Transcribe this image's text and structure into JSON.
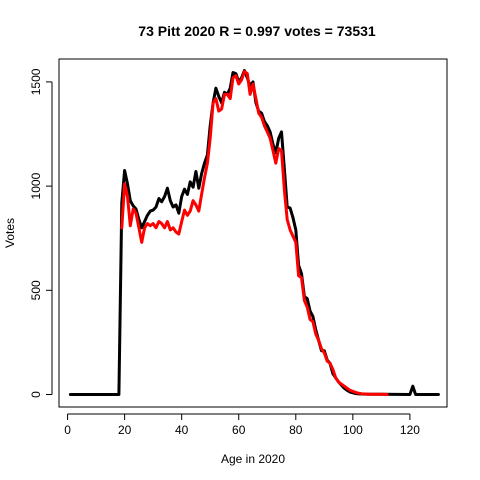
{
  "chart_data": {
    "type": "line",
    "title": "73 Pitt 2020 R = 0.997 votes = 73531",
    "xlabel": "Age in 2020",
    "ylabel": "Votes",
    "xlim": [
      -3,
      133
    ],
    "ylim": [
      -60,
      1610
    ],
    "x_ticks": [
      0,
      20,
      40,
      60,
      80,
      100,
      120
    ],
    "y_ticks": [
      0,
      500,
      1000,
      1500
    ],
    "grid": false,
    "legend": "none",
    "series": [
      {
        "color": "#000000",
        "points": [
          [
            1,
            0
          ],
          [
            18,
            0
          ],
          [
            19,
            920
          ],
          [
            20,
            1075
          ],
          [
            21,
            1010
          ],
          [
            22,
            930
          ],
          [
            23,
            905
          ],
          [
            24,
            890
          ],
          [
            25,
            840
          ],
          [
            26,
            800
          ],
          [
            27,
            830
          ],
          [
            28,
            860
          ],
          [
            29,
            880
          ],
          [
            30,
            885
          ],
          [
            31,
            900
          ],
          [
            32,
            940
          ],
          [
            33,
            925
          ],
          [
            34,
            950
          ],
          [
            35,
            990
          ],
          [
            36,
            930
          ],
          [
            37,
            900
          ],
          [
            38,
            910
          ],
          [
            39,
            870
          ],
          [
            40,
            950
          ],
          [
            41,
            985
          ],
          [
            42,
            960
          ],
          [
            43,
            1020
          ],
          [
            44,
            995
          ],
          [
            45,
            1070
          ],
          [
            46,
            990
          ],
          [
            47,
            1060
          ],
          [
            48,
            1110
          ],
          [
            49,
            1150
          ],
          [
            50,
            1290
          ],
          [
            51,
            1400
          ],
          [
            52,
            1470
          ],
          [
            53,
            1430
          ],
          [
            54,
            1400
          ],
          [
            55,
            1450
          ],
          [
            56,
            1440
          ],
          [
            57,
            1470
          ],
          [
            58,
            1545
          ],
          [
            59,
            1540
          ],
          [
            60,
            1500
          ],
          [
            61,
            1520
          ],
          [
            62,
            1555
          ],
          [
            63,
            1520
          ],
          [
            64,
            1480
          ],
          [
            65,
            1500
          ],
          [
            66,
            1400
          ],
          [
            67,
            1360
          ],
          [
            68,
            1350
          ],
          [
            69,
            1310
          ],
          [
            70,
            1290
          ],
          [
            71,
            1260
          ],
          [
            72,
            1200
          ],
          [
            73,
            1160
          ],
          [
            74,
            1230
          ],
          [
            75,
            1260
          ],
          [
            76,
            1080
          ],
          [
            77,
            900
          ],
          [
            78,
            895
          ],
          [
            79,
            850
          ],
          [
            80,
            790
          ],
          [
            81,
            620
          ],
          [
            82,
            580
          ],
          [
            83,
            470
          ],
          [
            84,
            460
          ],
          [
            85,
            400
          ],
          [
            86,
            375
          ],
          [
            87,
            310
          ],
          [
            88,
            260
          ],
          [
            89,
            210
          ],
          [
            90,
            210
          ],
          [
            91,
            165
          ],
          [
            92,
            150
          ],
          [
            93,
            100
          ],
          [
            94,
            80
          ],
          [
            95,
            60
          ],
          [
            96,
            45
          ],
          [
            97,
            30
          ],
          [
            98,
            20
          ],
          [
            99,
            12
          ],
          [
            100,
            8
          ],
          [
            101,
            5
          ],
          [
            102,
            3
          ],
          [
            104,
            2
          ],
          [
            106,
            1
          ],
          [
            108,
            1
          ],
          [
            110,
            1
          ],
          [
            120,
            0
          ],
          [
            121,
            40
          ],
          [
            122,
            0
          ],
          [
            130,
            0
          ]
        ]
      },
      {
        "color": "#ff0000",
        "points": [
          [
            19,
            800
          ],
          [
            20,
            1010
          ],
          [
            21,
            950
          ],
          [
            22,
            810
          ],
          [
            23,
            890
          ],
          [
            24,
            870
          ],
          [
            25,
            800
          ],
          [
            26,
            730
          ],
          [
            27,
            800
          ],
          [
            28,
            820
          ],
          [
            29,
            810
          ],
          [
            30,
            820
          ],
          [
            31,
            800
          ],
          [
            32,
            830
          ],
          [
            33,
            820
          ],
          [
            34,
            800
          ],
          [
            35,
            830
          ],
          [
            36,
            790
          ],
          [
            37,
            800
          ],
          [
            38,
            780
          ],
          [
            39,
            770
          ],
          [
            40,
            830
          ],
          [
            41,
            885
          ],
          [
            42,
            860
          ],
          [
            43,
            880
          ],
          [
            44,
            930
          ],
          [
            45,
            910
          ],
          [
            46,
            880
          ],
          [
            47,
            960
          ],
          [
            48,
            1040
          ],
          [
            49,
            1110
          ],
          [
            50,
            1230
          ],
          [
            51,
            1400
          ],
          [
            52,
            1420
          ],
          [
            53,
            1360
          ],
          [
            54,
            1370
          ],
          [
            55,
            1440
          ],
          [
            56,
            1440
          ],
          [
            57,
            1420
          ],
          [
            58,
            1520
          ],
          [
            59,
            1530
          ],
          [
            60,
            1490
          ],
          [
            61,
            1510
          ],
          [
            62,
            1550
          ],
          [
            63,
            1540
          ],
          [
            64,
            1440
          ],
          [
            65,
            1490
          ],
          [
            66,
            1420
          ],
          [
            67,
            1350
          ],
          [
            68,
            1330
          ],
          [
            69,
            1290
          ],
          [
            70,
            1260
          ],
          [
            71,
            1230
          ],
          [
            72,
            1170
          ],
          [
            73,
            1110
          ],
          [
            74,
            1180
          ],
          [
            75,
            1170
          ],
          [
            76,
            980
          ],
          [
            77,
            840
          ],
          [
            78,
            790
          ],
          [
            79,
            760
          ],
          [
            80,
            730
          ],
          [
            81,
            570
          ],
          [
            82,
            560
          ],
          [
            83,
            450
          ],
          [
            84,
            420
          ],
          [
            85,
            360
          ],
          [
            86,
            350
          ],
          [
            87,
            290
          ],
          [
            88,
            260
          ],
          [
            89,
            220
          ],
          [
            90,
            200
          ],
          [
            91,
            160
          ],
          [
            92,
            150
          ],
          [
            93,
            120
          ],
          [
            94,
            80
          ],
          [
            95,
            60
          ],
          [
            96,
            50
          ],
          [
            97,
            40
          ],
          [
            98,
            30
          ],
          [
            99,
            20
          ],
          [
            100,
            15
          ],
          [
            101,
            10
          ],
          [
            102,
            6
          ],
          [
            103,
            4
          ],
          [
            105,
            2
          ],
          [
            108,
            1
          ],
          [
            110,
            1
          ],
          [
            112,
            0
          ]
        ]
      }
    ]
  }
}
